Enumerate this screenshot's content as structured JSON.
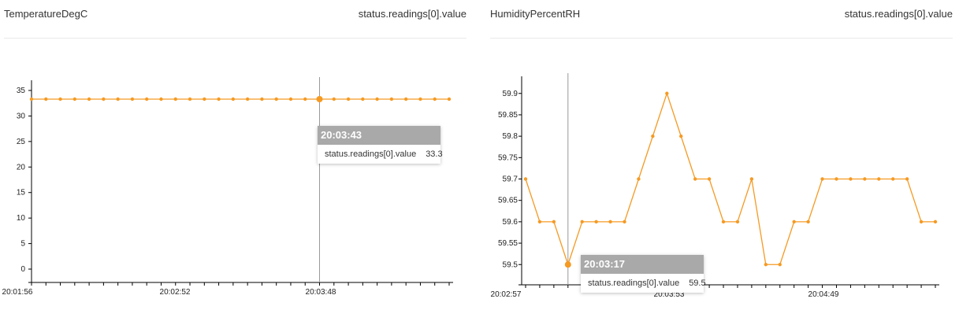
{
  "colors": {
    "series": "#f59a23",
    "axis": "#000000",
    "crosshair": "#999999",
    "divider": "#e9e9e9"
  },
  "panels": [
    {
      "title": "TemperatureDegC",
      "field": "status.readings[0].value",
      "tooltip": {
        "time": "20:03:43",
        "series": "status.readings[0].value",
        "value": "33.3"
      }
    },
    {
      "title": "HumidityPercentRH",
      "field": "status.readings[0].value",
      "tooltip": {
        "time": "20:03:17",
        "series": "status.readings[0].value",
        "value": "59.5"
      }
    }
  ],
  "chart_data": [
    {
      "type": "line",
      "title": "TemperatureDegC",
      "xlabel": "",
      "ylabel": "",
      "ylim": [
        -2,
        37
      ],
      "yticks": [
        0,
        5,
        10,
        15,
        20,
        25,
        30,
        35
      ],
      "x_tick_labels": [
        "20:01:56",
        "20:02:52",
        "20:03:48"
      ],
      "highlight_index": 20,
      "series": [
        {
          "name": "status.readings[0].value",
          "values": [
            33.3,
            33.3,
            33.3,
            33.3,
            33.3,
            33.3,
            33.3,
            33.3,
            33.3,
            33.3,
            33.3,
            33.3,
            33.3,
            33.3,
            33.3,
            33.3,
            33.3,
            33.3,
            33.3,
            33.3,
            33.3,
            33.3,
            33.3,
            33.3,
            33.3,
            33.3,
            33.3,
            33.3,
            33.3,
            33.3
          ]
        }
      ],
      "grid": false
    },
    {
      "type": "line",
      "title": "HumidityPercentRH",
      "xlabel": "",
      "ylabel": "",
      "ylim": [
        59.46,
        59.94
      ],
      "yticks": [
        59.5,
        59.55,
        59.6,
        59.65,
        59.7,
        59.75,
        59.8,
        59.85,
        59.9
      ],
      "ytick_labels": [
        "59.5",
        "59.55",
        "59.6",
        "59.65",
        "59.7",
        "59.75",
        "59.8",
        "59.85",
        "59.9"
      ],
      "x_tick_labels": [
        "20:02:57",
        "20:03:53",
        "20:04:49"
      ],
      "highlight_index": 3,
      "series": [
        {
          "name": "status.readings[0].value",
          "values": [
            59.7,
            59.6,
            59.6,
            59.5,
            59.6,
            59.6,
            59.6,
            59.6,
            59.7,
            59.8,
            59.9,
            59.8,
            59.7,
            59.7,
            59.6,
            59.6,
            59.7,
            59.5,
            59.5,
            59.6,
            59.6,
            59.7,
            59.7,
            59.7,
            59.7,
            59.7,
            59.7,
            59.7,
            59.6,
            59.6
          ]
        }
      ],
      "grid": false
    }
  ]
}
